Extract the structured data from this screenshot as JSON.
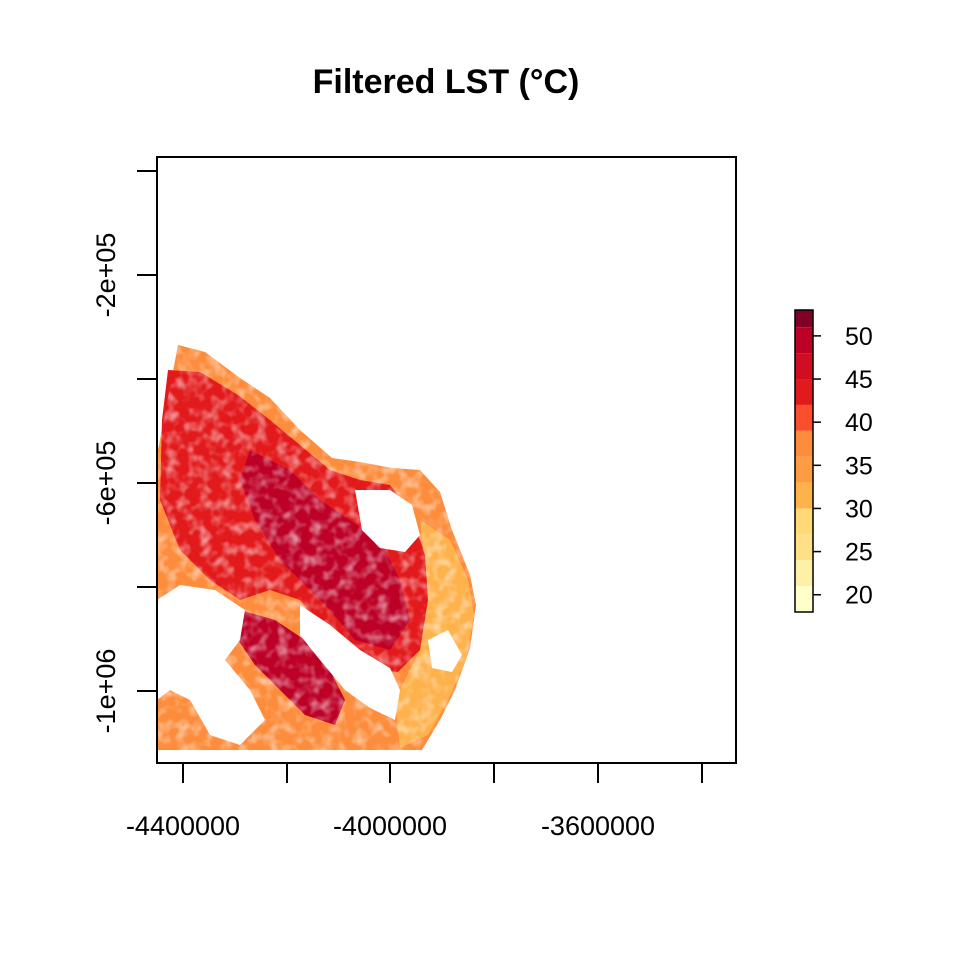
{
  "title": "Filtered LST (°C)",
  "x_axis": {
    "ticks": [
      -4500000,
      -4300000,
      -4100000,
      -3900000,
      -3700000,
      -3500000
    ],
    "labels": [
      "-4400000",
      "-4000000",
      "-3600000"
    ],
    "label_values": [
      -4400000,
      -4000000,
      -3600000
    ],
    "range": [
      -4450000,
      -3340000
    ]
  },
  "y_axis": {
    "ticks": [
      -100000,
      -300000,
      -500000,
      -700000,
      -900000,
      -1100000
    ],
    "labels": [
      "-2e+05",
      "-6e+05",
      "-1e+06"
    ],
    "label_values": [
      -200000,
      -600000,
      -1000000
    ],
    "range": [
      -1150000,
      -20000
    ]
  },
  "legend": {
    "breaks": [
      18,
      21,
      24,
      27,
      30,
      33,
      36,
      39,
      42,
      45,
      48,
      51,
      53
    ],
    "colors": [
      "#FFFFCC",
      "#FFF0A8",
      "#FEE087",
      "#FED976",
      "#FEB24C",
      "#FD9C42",
      "#FD8D3C",
      "#FC4E2A",
      "#E31A1C",
      "#D00D21",
      "#BD0026",
      "#800026"
    ],
    "labels": [
      "20",
      "25",
      "30",
      "35",
      "40",
      "45",
      "50"
    ],
    "label_values": [
      20,
      25,
      30,
      35,
      40,
      45,
      50
    ]
  },
  "map_region": {
    "colors": {
      "hot": "#E31A1C",
      "very_hot": "#BD0026",
      "warm": "#FD8D3C",
      "mild": "#FEB24C",
      "background": "#ffffff"
    }
  }
}
